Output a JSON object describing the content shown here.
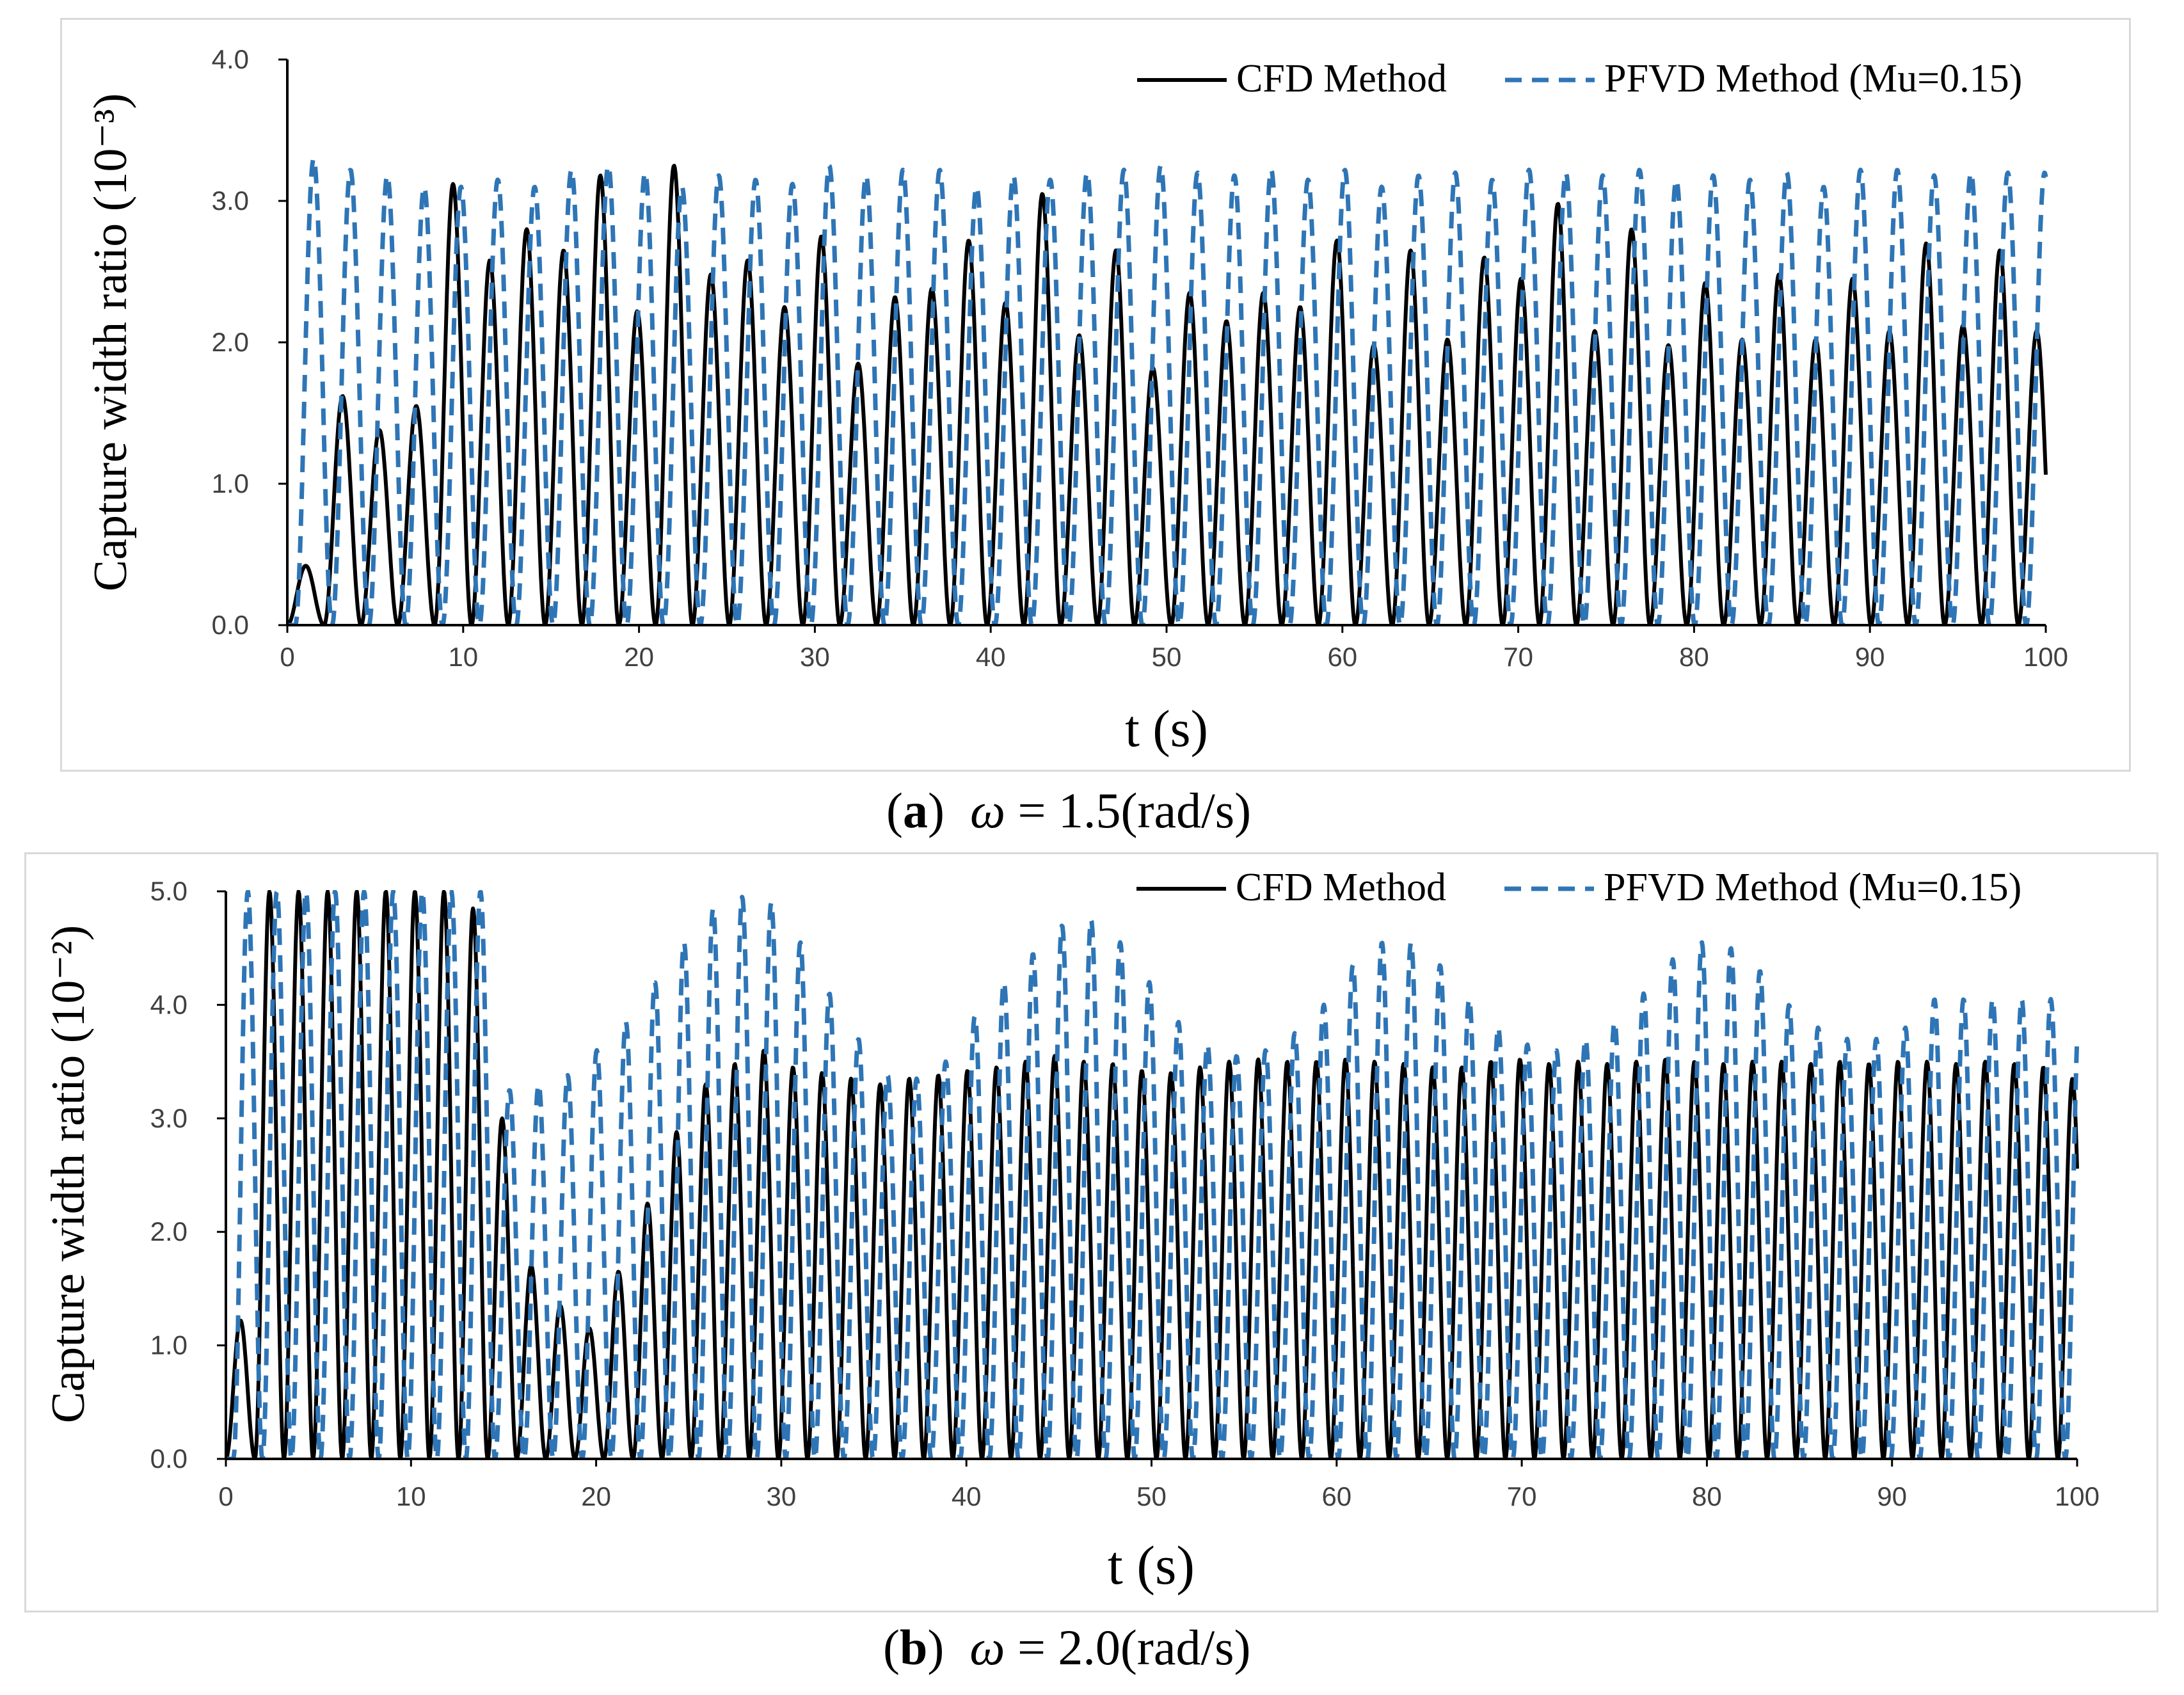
{
  "chart_data": [
    {
      "type": "line",
      "panel_label": "a",
      "caption": "ω = 1.5(rad/s)",
      "caption_omega": "ω",
      "caption_value": "= 1.5(rad/s)",
      "xlabel": "t (s)",
      "ylabel": "Capture width ratio (10⁻³)",
      "xlim": [
        0,
        100
      ],
      "ylim": [
        0,
        4.0
      ],
      "xticks": [
        0,
        10,
        20,
        30,
        40,
        50,
        60,
        70,
        80,
        90,
        100
      ],
      "xtick_labels": [
        "0",
        "10",
        "20",
        "30",
        "40",
        "50",
        "60",
        "70",
        "80",
        "90",
        "100"
      ],
      "yticks": [
        0,
        1.0,
        2.0,
        3.0,
        4.0
      ],
      "ytick_labels": [
        "0.0",
        "1.0",
        "2.0",
        "3.0",
        "4.0"
      ],
      "grid": false,
      "legend_position": "top-right",
      "period": 2.0944,
      "series": [
        {
          "name": "CFD Method",
          "color": "#000000",
          "dash": "solid",
          "phase": 0,
          "peaks": [
            0.42,
            1.62,
            1.38,
            1.55,
            3.12,
            2.58,
            2.8,
            2.65,
            3.18,
            2.22,
            3.25,
            2.48,
            2.58,
            2.25,
            2.75,
            1.85,
            2.32,
            2.38,
            2.72,
            2.28,
            3.05,
            2.05,
            2.65,
            1.82,
            2.35,
            2.15,
            2.35,
            2.25,
            2.72,
            1.98,
            2.65,
            2.02,
            2.6,
            2.45,
            2.98,
            2.08,
            2.8,
            1.98,
            2.42,
            2.02,
            2.48,
            2.02,
            2.45,
            2.08,
            2.7,
            2.12,
            2.65,
            2.08,
            2.52
          ]
        },
        {
          "name": "PFVD Method (Mu=0.15)",
          "color": "#2e75b6",
          "dash": "dashed",
          "phase": 0.45,
          "peaks": [
            3.3,
            3.22,
            3.18,
            3.1,
            3.1,
            3.15,
            3.1,
            3.22,
            3.25,
            3.2,
            3.1,
            3.18,
            3.15,
            3.12,
            3.25,
            3.18,
            3.22,
            3.22,
            3.1,
            3.18,
            3.15,
            3.2,
            3.22,
            3.25,
            3.2,
            3.18,
            3.22,
            3.15,
            3.22,
            3.1,
            3.18,
            3.2,
            3.15,
            3.22,
            3.2,
            3.18,
            3.22,
            3.15,
            3.18,
            3.15,
            3.2,
            3.1,
            3.22,
            3.22,
            3.18,
            3.2,
            3.2,
            3.2
          ]
        }
      ]
    },
    {
      "type": "line",
      "panel_label": "b",
      "caption": "ω = 2.0(rad/s)",
      "caption_omega": "ω",
      "caption_value": "= 2.0(rad/s)",
      "xlabel": "t (s)",
      "ylabel": "Capture width ratio (10⁻²)",
      "xlim": [
        0,
        100
      ],
      "ylim": [
        0,
        5.0
      ],
      "xticks": [
        0,
        10,
        20,
        30,
        40,
        50,
        60,
        70,
        80,
        90,
        100
      ],
      "xtick_labels": [
        "0",
        "10",
        "20",
        "30",
        "40",
        "50",
        "60",
        "70",
        "80",
        "90",
        "100"
      ],
      "yticks": [
        0,
        1.0,
        2.0,
        3.0,
        4.0,
        5.0
      ],
      "ytick_labels": [
        "0.0",
        "1.0",
        "2.0",
        "3.0",
        "4.0",
        "5.0"
      ],
      "grid": false,
      "legend_position": "top-right",
      "period": 1.5708,
      "series": [
        {
          "name": "CFD Method",
          "color": "#000000",
          "dash": "solid",
          "phase": 0,
          "peaks": [
            1.22,
            5.0,
            5.0,
            5.0,
            5.0,
            5.0,
            5.0,
            5.0,
            4.85,
            3.0,
            1.7,
            1.35,
            1.15,
            1.65,
            2.25,
            2.88,
            3.3,
            3.48,
            3.6,
            3.45,
            3.4,
            3.35,
            3.3,
            3.35,
            3.38,
            3.42,
            3.45,
            3.5,
            3.55,
            3.5,
            3.48,
            3.42,
            3.4,
            3.45,
            3.5,
            3.52,
            3.5,
            3.5,
            3.52,
            3.5,
            3.48,
            3.45,
            3.45,
            3.5,
            3.52,
            3.48,
            3.5,
            3.48,
            3.5,
            3.52,
            3.5,
            3.48,
            3.5,
            3.5,
            3.48,
            3.5,
            3.48,
            3.5,
            3.5,
            3.48,
            3.5,
            3.48,
            3.45,
            3.35
          ]
        },
        {
          "name": "PFVD Method (Mu=0.15)",
          "color": "#2e75b6",
          "dash": "dashed",
          "phase": 0.4,
          "peaks": [
            5.0,
            5.0,
            5.0,
            5.0,
            5.0,
            5.0,
            5.0,
            5.0,
            5.0,
            3.25,
            3.3,
            3.38,
            3.6,
            3.85,
            4.2,
            4.55,
            4.85,
            4.95,
            4.9,
            4.55,
            4.1,
            3.7,
            3.38,
            3.35,
            3.5,
            3.9,
            4.2,
            4.45,
            4.7,
            4.75,
            4.55,
            4.2,
            3.85,
            3.65,
            3.55,
            3.6,
            3.75,
            4.0,
            4.35,
            4.55,
            4.55,
            4.35,
            4.05,
            3.8,
            3.65,
            3.6,
            3.7,
            3.85,
            4.1,
            4.4,
            4.55,
            4.5,
            4.3,
            4.0,
            3.8,
            3.7,
            3.7,
            3.8,
            4.05
          ]
        }
      ]
    }
  ]
}
